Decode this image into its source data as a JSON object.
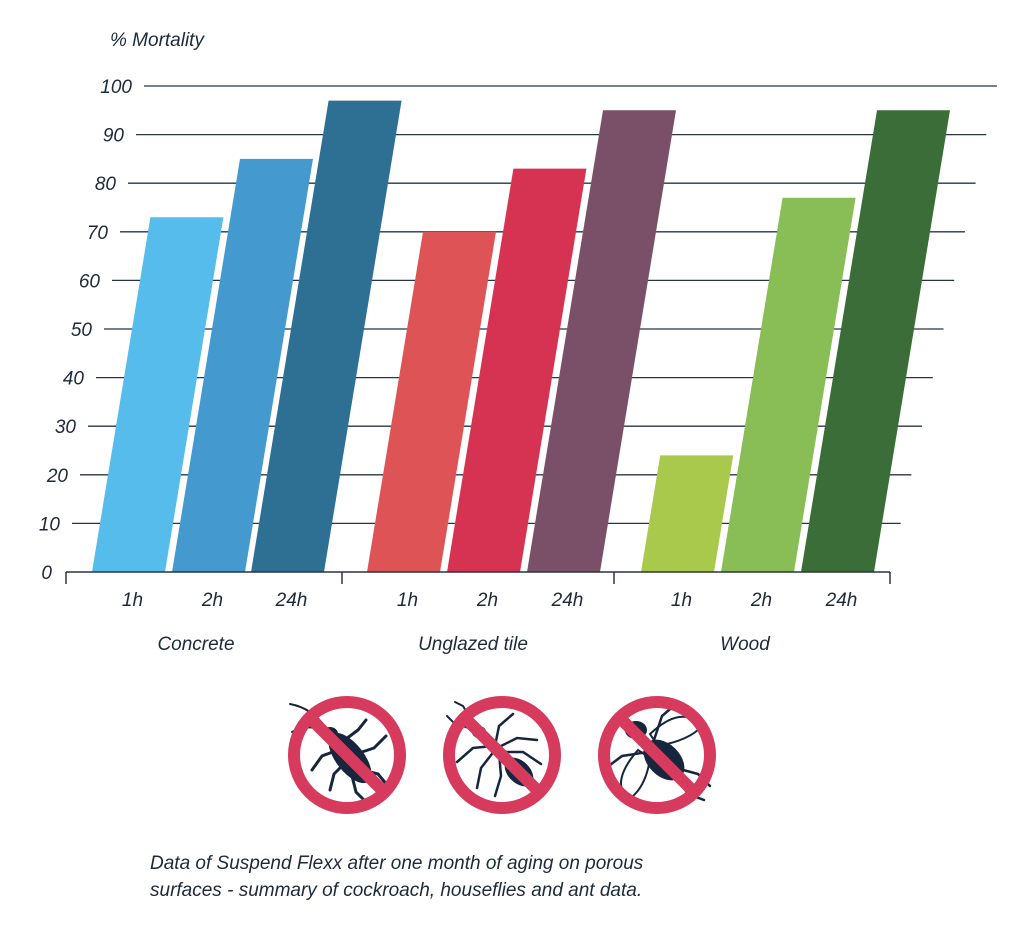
{
  "chart_data": {
    "type": "bar",
    "title": "",
    "ylabel": "% Mortality",
    "xlabel": "",
    "ylim": [
      0,
      100
    ],
    "yticks": [
      0,
      10,
      20,
      30,
      40,
      50,
      60,
      70,
      80,
      90,
      100
    ],
    "grid": true,
    "groups": [
      {
        "name": "Concrete",
        "bars": [
          {
            "label": "1h",
            "value": 73,
            "color": "#56bcec"
          },
          {
            "label": "2h",
            "value": 85,
            "color": "#4499cf"
          },
          {
            "label": "24h",
            "value": 97,
            "color": "#2e6f94"
          }
        ]
      },
      {
        "name": "Unglazed tile",
        "bars": [
          {
            "label": "1h",
            "value": 70,
            "color": "#de5356"
          },
          {
            "label": "2h",
            "value": 83,
            "color": "#d63353"
          },
          {
            "label": "24h",
            "value": 95,
            "color": "#7a5068"
          }
        ]
      },
      {
        "name": "Wood",
        "bars": [
          {
            "label": "1h",
            "value": 24,
            "color": "#a8c94c"
          },
          {
            "label": "2h",
            "value": 77,
            "color": "#89bd55"
          },
          {
            "label": "24h",
            "value": 95,
            "color": "#3b6d38"
          }
        ]
      }
    ]
  },
  "icons": [
    {
      "name": "no-cockroach-icon"
    },
    {
      "name": "no-ant-icon"
    },
    {
      "name": "no-housefly-icon"
    }
  ],
  "caption": {
    "line1": "Data of Suspend Flexx after one month of aging on porous",
    "line2": "surfaces - summary of cockroach, houseflies and ant data."
  },
  "colors": {
    "prohibition": "#d63a5c",
    "insect": "#16263e",
    "grid": "#2a3445",
    "text": "#1d2a3a"
  }
}
